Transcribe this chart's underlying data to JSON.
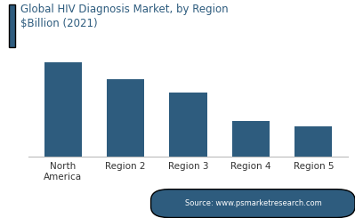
{
  "categories": [
    "North\nAmerica",
    "Region 2",
    "Region 3",
    "Region 4",
    "Region 5"
  ],
  "values": [
    1.0,
    0.82,
    0.68,
    0.38,
    0.32
  ],
  "bar_color": "#2e5c7e",
  "title_line1": "Global HIV Diagnosis Market, by Region",
  "title_line2": "$Billion (2021)",
  "title_color": "#2e5c7e",
  "title_fontsize": 8.5,
  "background_color": "#ffffff",
  "source_text": "Source: www.psmarketresearch.com",
  "source_bg": "#2e5c7e",
  "source_text_color": "#ffffff",
  "source_fontsize": 6.0,
  "tick_fontsize": 7.5,
  "ylim": [
    0,
    1.15
  ],
  "bar_width": 0.6,
  "accent_color": "#2e5c7e"
}
